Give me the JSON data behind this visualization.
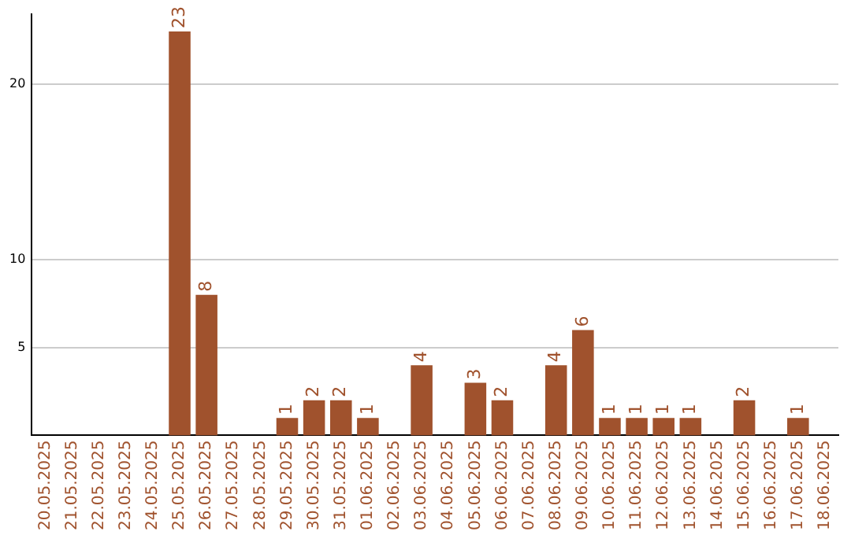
{
  "chart_data": {
    "type": "bar",
    "categories": [
      "20.05.2025",
      "21.05.2025",
      "22.05.2025",
      "23.05.2025",
      "24.05.2025",
      "25.05.2025",
      "26.05.2025",
      "27.05.2025",
      "28.05.2025",
      "29.05.2025",
      "30.05.2025",
      "31.05.2025",
      "01.06.2025",
      "02.06.2025",
      "03.06.2025",
      "04.06.2025",
      "05.06.2025",
      "06.06.2025",
      "07.06.2025",
      "08.06.2025",
      "09.06.2025",
      "10.06.2025",
      "11.06.2025",
      "12.06.2025",
      "13.06.2025",
      "14.06.2025",
      "15.06.2025",
      "16.06.2025",
      "17.06.2025",
      "18.06.2025"
    ],
    "values": [
      0,
      0,
      0,
      0,
      0,
      23,
      8,
      0,
      0,
      1,
      2,
      2,
      1,
      0,
      4,
      0,
      3,
      2,
      0,
      4,
      6,
      1,
      1,
      1,
      1,
      0,
      2,
      0,
      1,
      0
    ],
    "value_labels": [
      null,
      null,
      null,
      null,
      null,
      "23",
      "8",
      null,
      null,
      "1",
      "2",
      "2",
      "1",
      null,
      "4",
      null,
      "3",
      "2",
      null,
      "4",
      "6",
      "1",
      "1",
      "1",
      "1",
      null,
      "2",
      null,
      "1",
      null
    ],
    "color": "#a0522d",
    "ylim": [
      0,
      24
    ],
    "yticks": [
      5,
      10,
      20
    ],
    "grid": "y",
    "legend": false
  }
}
